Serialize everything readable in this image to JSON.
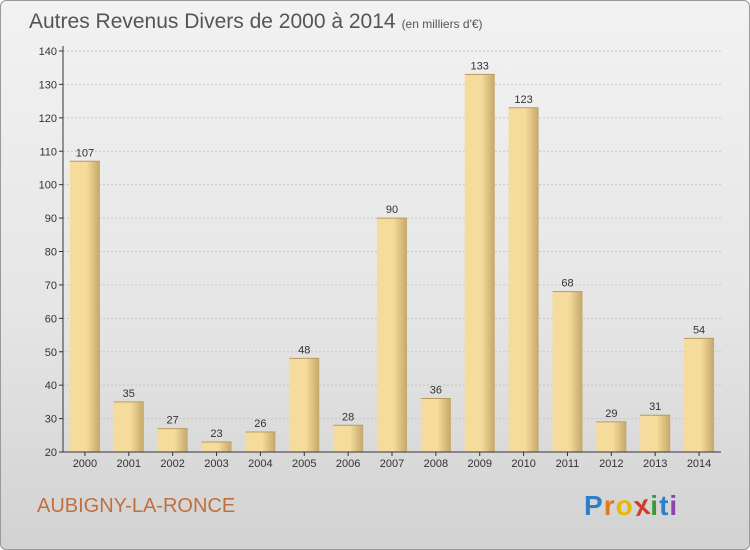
{
  "title": "Autres Revenus Divers de 2000 à 2014",
  "unit_label": "(en milliers d'€)",
  "commune": "AUBIGNY-LA-RONCE",
  "brand": {
    "name": "Proxiti",
    "letters": [
      "P",
      "r",
      "o",
      "x",
      "i",
      "t",
      "i"
    ],
    "colors": [
      "#2f7fc8",
      "#e07a20",
      "#e9b800",
      "#d23a2a",
      "#3a9a3a",
      "#2f7fc8",
      "#8e44ad"
    ]
  },
  "colors": {
    "bar_light": "#f6dc9c",
    "bar_dark": "#c4a76a",
    "grid": "#c8c8c8",
    "axis": "#333333"
  },
  "chart_data": {
    "type": "bar",
    "categories": [
      "2000",
      "2001",
      "2002",
      "2003",
      "2004",
      "2005",
      "2006",
      "2007",
      "2008",
      "2009",
      "2010",
      "2011",
      "2012",
      "2013",
      "2014"
    ],
    "values": [
      107,
      35,
      27,
      23,
      26,
      48,
      28,
      90,
      36,
      133,
      123,
      68,
      29,
      31,
      54
    ],
    "ylim": [
      20,
      140
    ],
    "yticks": [
      20,
      30,
      40,
      50,
      60,
      70,
      80,
      90,
      100,
      110,
      120,
      130,
      140
    ],
    "grid": true,
    "data_labels": true
  }
}
